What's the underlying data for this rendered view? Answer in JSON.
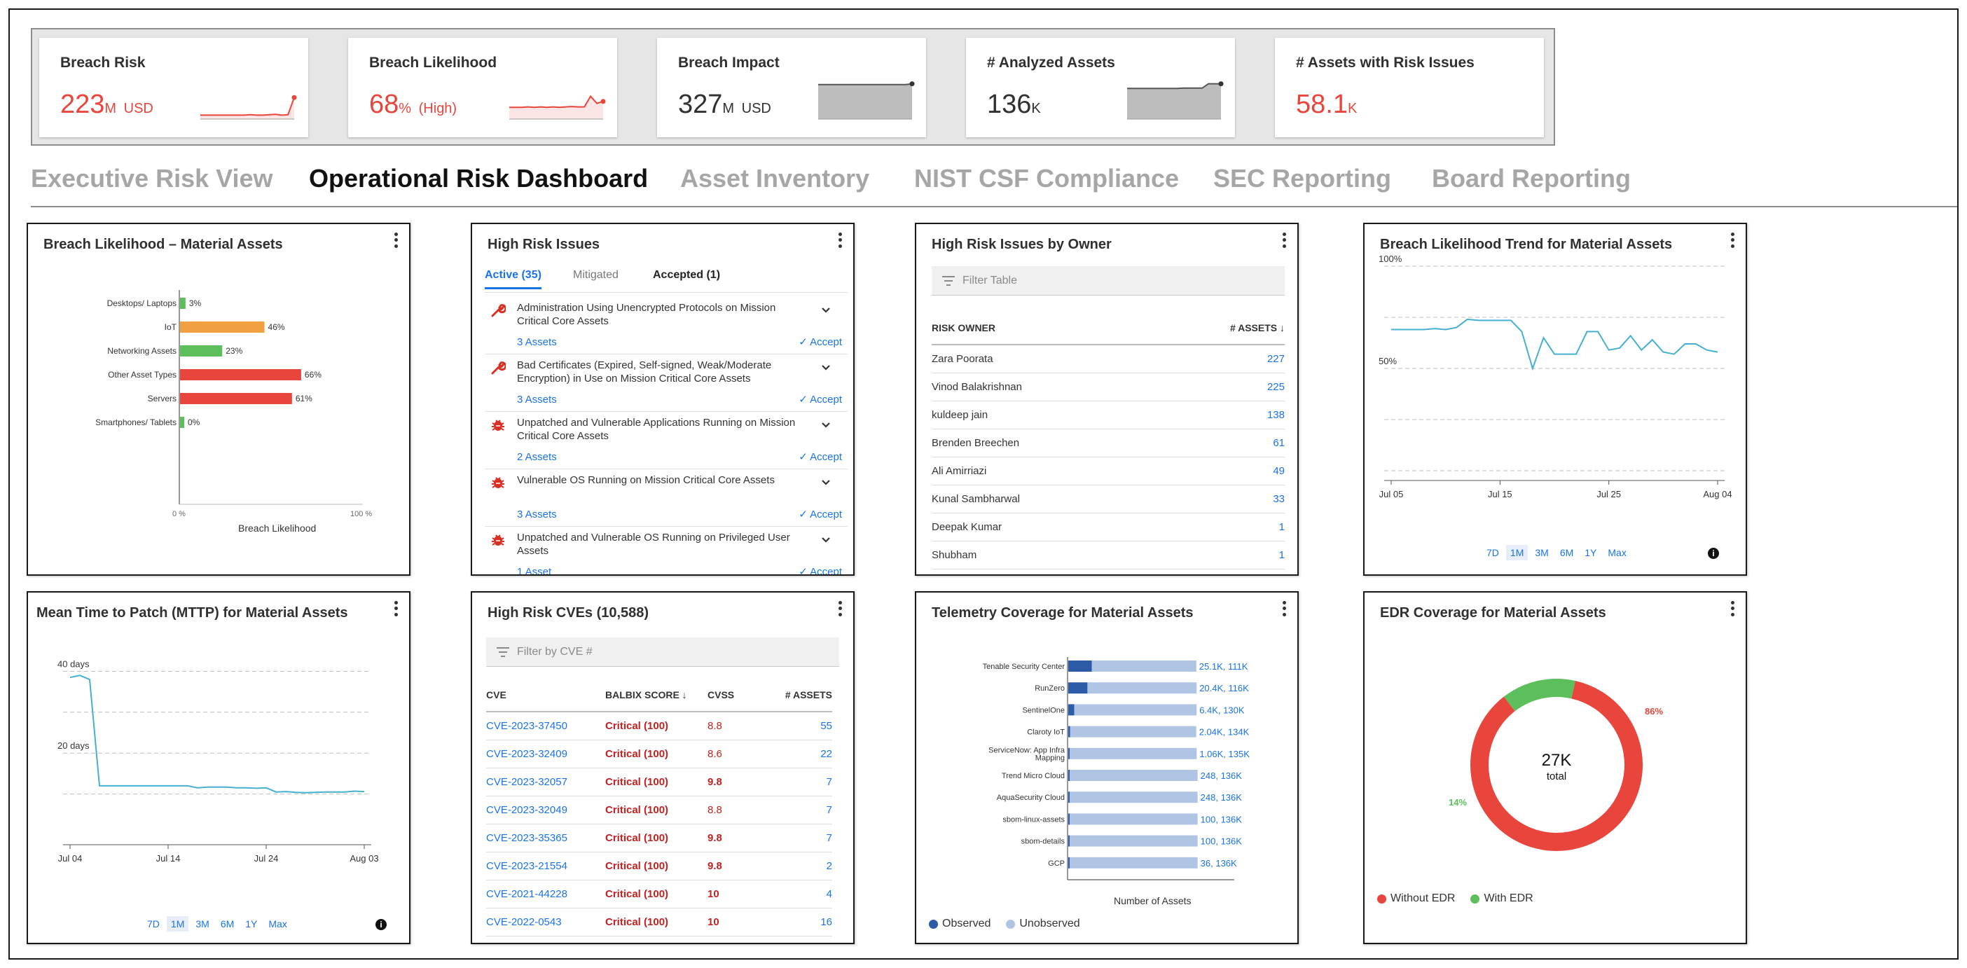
{
  "kpis": [
    {
      "title": "Breach Risk",
      "value": "223",
      "unit": "M",
      "suffix": "USD",
      "color": "#e8453c",
      "trend": [
        10,
        10,
        10,
        10,
        10,
        10,
        10,
        10,
        11,
        10,
        10,
        11,
        12,
        10,
        11,
        55
      ]
    },
    {
      "title": "Breach Likelihood",
      "value": "68",
      "unit": "%",
      "suffix": "(High)",
      "color": "#e8453c",
      "trend": [
        30,
        30,
        30,
        31,
        30,
        31,
        30,
        31,
        30,
        31,
        32,
        31,
        31,
        58,
        40,
        45
      ]
    },
    {
      "title": "Breach Impact",
      "value": "327",
      "unit": "M",
      "suffix": "USD",
      "color": "#303030",
      "trend": [
        88,
        88,
        88,
        88,
        88,
        88,
        88,
        88,
        88,
        88,
        88,
        88,
        88,
        88,
        88,
        90
      ]
    },
    {
      "title": "# Analyzed Assets",
      "value": "136",
      "unit": "K",
      "suffix": "",
      "color": "#303030",
      "trend": [
        78,
        78,
        78,
        78,
        78,
        78,
        78,
        78,
        78,
        79,
        79,
        79,
        79,
        90,
        90,
        90
      ]
    },
    {
      "title": "# Assets with Risk Issues",
      "value": "58.1",
      "unit": "K",
      "suffix": "",
      "color": "#e8453c",
      "trend": []
    }
  ],
  "tabs": [
    "Executive Risk View",
    "Operational Risk Dashboard",
    "Asset Inventory",
    "NIST CSF Compliance",
    "SEC Reporting",
    "Board Reporting"
  ],
  "active_tab": "Operational Risk Dashboard",
  "colors": {
    "red": "#e8453c",
    "orange": "#f0a040",
    "green": "#5cbf5c",
    "blue": "#1a73e8",
    "teal": "#45b0d0",
    "navy": "#2c5ba8",
    "lightblue": "#b0c4e4"
  },
  "breach_likelihood": {
    "title": "Breach Likelihood  – Material Assets",
    "xlabel": "Breach Likelihood",
    "xticks": [
      "0 %",
      "100 %"
    ]
  },
  "high_risk_issues": {
    "title": "High Risk Issues",
    "tabs": [
      "Active (35)",
      "Mitigated",
      "Accepted (1)"
    ],
    "accept_label": "✓ Accept",
    "items": [
      {
        "icon": "wrench",
        "text": "Administration Using Unencrypted Protocols on Mission Critical Core Assets",
        "assets": "3 Assets"
      },
      {
        "icon": "wrench",
        "text": "Bad Certificates (Expired, Self-signed, Weak/Moderate Encryption) in Use on Mission Critical Core Assets",
        "assets": "3 Assets"
      },
      {
        "icon": "bug",
        "text": "Unpatched and Vulnerable Applications Running on Mission Critical Core Assets",
        "assets": "2 Assets"
      },
      {
        "icon": "bug",
        "text": "Vulnerable OS Running on Mission Critical Core Assets",
        "assets": "3 Assets"
      },
      {
        "icon": "bug",
        "text": "Unpatched and Vulnerable OS Running on Privileged User Assets",
        "assets": "1 Asset"
      }
    ]
  },
  "owners": {
    "title": "High  Risk Issues by Owner",
    "filter_placeholder": "Filter Table",
    "col_owner": "RISK OWNER",
    "col_assets": "# ASSETS ↓",
    "rows": [
      {
        "owner": "Zara Poorata",
        "assets": "227"
      },
      {
        "owner": "Vinod Balakrishnan",
        "assets": "225"
      },
      {
        "owner": "kuldeep jain",
        "assets": "138"
      },
      {
        "owner": "Brenden Breechen",
        "assets": "61"
      },
      {
        "owner": "Ali Amirriazi",
        "assets": "49"
      },
      {
        "owner": "Kunal Sambharwal",
        "assets": "33"
      },
      {
        "owner": "Deepak Kumar",
        "assets": "1"
      },
      {
        "owner": "Shubham",
        "assets": "1"
      }
    ]
  },
  "trend": {
    "title": "Breach Likelihood Trend for Material Assets",
    "ranges": [
      "7D",
      "1M",
      "3M",
      "6M",
      "1Y",
      "Max"
    ],
    "selected_range": "1M"
  },
  "mttp": {
    "title": "Mean Time to Patch (MTTP) for Material Assets",
    "ranges": [
      "7D",
      "1M",
      "3M",
      "6M",
      "1Y",
      "Max"
    ],
    "selected_range": "1M"
  },
  "cves": {
    "title": "High Risk CVEs (10,588)",
    "filter_placeholder": "Filter by CVE #",
    "columns": [
      "CVE",
      "BALBIX SCORE ↓",
      "CVSS",
      "# ASSETS"
    ],
    "rows": [
      {
        "cve": "CVE-2023-37450",
        "score": "Critical (100)",
        "cvss": "8.8",
        "assets": "55"
      },
      {
        "cve": "CVE-2023-32409",
        "score": "Critical (100)",
        "cvss": "8.6",
        "assets": "22"
      },
      {
        "cve": "CVE-2023-32057",
        "score": "Critical (100)",
        "cvss": "9.8",
        "assets": "7"
      },
      {
        "cve": "CVE-2023-32049",
        "score": "Critical (100)",
        "cvss": "8.8",
        "assets": "7"
      },
      {
        "cve": "CVE-2023-35365",
        "score": "Critical (100)",
        "cvss": "9.8",
        "assets": "7"
      },
      {
        "cve": "CVE-2023-21554",
        "score": "Critical (100)",
        "cvss": "9.8",
        "assets": "2"
      },
      {
        "cve": "CVE-2021-44228",
        "score": "Critical (100)",
        "cvss": "10",
        "assets": "4"
      },
      {
        "cve": "CVE-2022-0543",
        "score": "Critical (100)",
        "cvss": "10",
        "assets": "16"
      }
    ]
  },
  "telemetry": {
    "title": "Telemetry Coverage for Material Assets",
    "xlabel": "Number of Assets",
    "legend": [
      "Observed",
      "Unobserved"
    ]
  },
  "edr": {
    "title": "EDR Coverage for Material Assets",
    "center_value": "27K",
    "center_label": "total",
    "legend": [
      "Without EDR",
      "With EDR"
    ]
  },
  "chart_data": [
    {
      "type": "bar",
      "orientation": "horizontal",
      "title": "Breach Likelihood  – Material Assets",
      "xlabel": "Breach Likelihood",
      "categories": [
        "Desktops/ Laptops",
        "IoT",
        "Networking Assets",
        "Other Asset Types",
        "Servers",
        "Smartphones/ Tablets"
      ],
      "values": [
        3,
        46,
        23,
        66,
        61,
        0
      ],
      "labels": [
        "3%",
        "46%",
        "23%",
        "66%",
        "61%",
        "0%"
      ],
      "colors": [
        "#5cbf5c",
        "#f0a040",
        "#5cbf5c",
        "#e8453c",
        "#e8453c",
        "#5cbf5c"
      ],
      "xlim": [
        0,
        100
      ]
    },
    {
      "type": "line",
      "title": "Breach Likelihood Trend for Material Assets",
      "x": [
        "Jul 05",
        "Jul 06",
        "Jul 07",
        "Jul 08",
        "Jul 09",
        "Jul 10",
        "Jul 11",
        "Jul 12",
        "Jul 13",
        "Jul 14",
        "Jul 15",
        "Jul 16",
        "Jul 17",
        "Jul 18",
        "Jul 19",
        "Jul 20",
        "Jul 21",
        "Jul 22",
        "Jul 23",
        "Jul 24",
        "Jul 25",
        "Jul 26",
        "Jul 27",
        "Jul 28",
        "Jul 29",
        "Jul 30",
        "Jul 31",
        "Aug 01",
        "Aug 02",
        "Aug 03",
        "Aug 04"
      ],
      "values": [
        69,
        69,
        69,
        69,
        69.5,
        69,
        70,
        74,
        73.5,
        73.5,
        73.5,
        73.5,
        68,
        50,
        65,
        57,
        57,
        57,
        68,
        68,
        59,
        60,
        66,
        59,
        64,
        58,
        57,
        62,
        62,
        59,
        58
      ],
      "yticks": [
        "50%",
        "100%"
      ],
      "xticks": [
        "Jul 05",
        "Jul 15",
        "Jul 25",
        "Aug 04"
      ],
      "ylim": [
        0,
        100
      ],
      "grid": true
    },
    {
      "type": "line",
      "title": "Mean Time to Patch (MTTP) for Material Assets",
      "x": [
        "Jul 04",
        "Jul 05",
        "Jul 06",
        "Jul 07",
        "Jul 08",
        "Jul 09",
        "Jul 10",
        "Jul 11",
        "Jul 12",
        "Jul 13",
        "Jul 14",
        "Jul 15",
        "Jul 16",
        "Jul 17",
        "Jul 18",
        "Jul 19",
        "Jul 20",
        "Jul 21",
        "Jul 22",
        "Jul 23",
        "Jul 24",
        "Jul 25",
        "Jul 26",
        "Jul 27",
        "Jul 28",
        "Jul 29",
        "Jul 30",
        "Jul 31",
        "Aug 01",
        "Aug 02",
        "Aug 03"
      ],
      "values": [
        38.5,
        39,
        38,
        12,
        12,
        12,
        12,
        12,
        12,
        12,
        12,
        12,
        12,
        11.5,
        11.7,
        11.7,
        11.7,
        11.5,
        11.5,
        11.4,
        11.5,
        10.5,
        10.6,
        10.4,
        10.3,
        10.4,
        10.5,
        10.5,
        10.5,
        10.7,
        10.6
      ],
      "yticks": [
        "20 days",
        "40 days"
      ],
      "xticks": [
        "Jul 04",
        "Jul 14",
        "Jul 24",
        "Aug 03"
      ],
      "ylim": [
        0,
        50
      ],
      "grid": true
    },
    {
      "type": "bar",
      "orientation": "horizontal",
      "stacked": true,
      "title": "Telemetry Coverage for Material Assets",
      "xlabel": "Number of Assets",
      "categories": [
        "Tenable Security Center",
        "RunZero",
        "SentinelOne",
        "Claroty IoT",
        "ServiceNow: App Infra Mapping",
        "Trend Micro Cloud",
        "AquaSecurity Cloud",
        "sbom-linux-assets",
        "sbom-details",
        "GCP"
      ],
      "series": [
        {
          "name": "Observed",
          "values": [
            25.1,
            20.4,
            6.4,
            2.04,
            1.06,
            0.248,
            0.248,
            0.1,
            0.1,
            0.036
          ]
        },
        {
          "name": "Unobserved",
          "values": [
            111,
            116,
            130,
            134,
            135,
            136,
            136,
            136,
            136,
            136
          ]
        }
      ],
      "labels": [
        "25.1K, 111K",
        "20.4K, 116K",
        "6.4K, 130K",
        "2.04K, 134K",
        "1.06K, 135K",
        "248, 136K",
        "248, 136K",
        "100, 136K",
        "100, 136K",
        "36, 136K"
      ],
      "legend": "bottom-left"
    },
    {
      "type": "pie",
      "title": "EDR Coverage for Material Assets",
      "categories": [
        "Without EDR",
        "With EDR"
      ],
      "values": [
        86,
        14
      ],
      "labels": [
        "86%",
        "14%"
      ],
      "colors": [
        "#e8453c",
        "#5cbf5c"
      ],
      "legend": "bottom-left"
    }
  ]
}
